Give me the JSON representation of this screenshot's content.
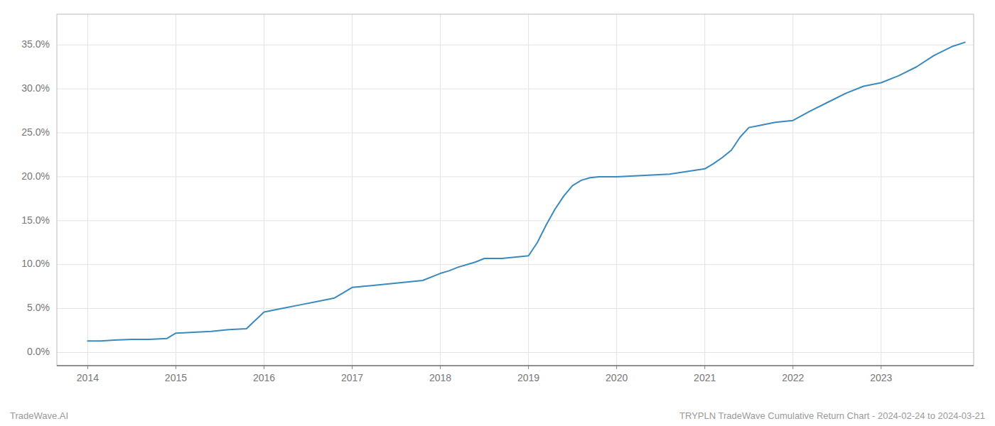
{
  "chart_data": {
    "type": "line",
    "x": [
      2014.0,
      2014.15,
      2014.3,
      2014.5,
      2014.7,
      2014.9,
      2015.0,
      2015.2,
      2015.4,
      2015.6,
      2015.8,
      2016.0,
      2016.2,
      2016.4,
      2016.6,
      2016.8,
      2017.0,
      2017.2,
      2017.4,
      2017.6,
      2017.8,
      2018.0,
      2018.1,
      2018.2,
      2018.3,
      2018.4,
      2018.5,
      2018.6,
      2018.7,
      2018.8,
      2018.9,
      2019.0,
      2019.1,
      2019.2,
      2019.3,
      2019.4,
      2019.5,
      2019.6,
      2019.7,
      2019.8,
      2019.9,
      2020.0,
      2020.2,
      2020.4,
      2020.6,
      2020.8,
      2021.0,
      2021.1,
      2021.2,
      2021.3,
      2021.4,
      2021.5,
      2021.6,
      2021.7,
      2021.8,
      2021.9,
      2022.0,
      2022.2,
      2022.4,
      2022.6,
      2022.8,
      2023.0,
      2023.2,
      2023.4,
      2023.6,
      2023.8,
      2023.95
    ],
    "values": [
      0.013,
      0.013,
      0.014,
      0.015,
      0.015,
      0.016,
      0.022,
      0.023,
      0.024,
      0.026,
      0.027,
      0.046,
      0.05,
      0.054,
      0.058,
      0.062,
      0.074,
      0.076,
      0.078,
      0.08,
      0.082,
      0.09,
      0.093,
      0.097,
      0.1,
      0.103,
      0.107,
      0.107,
      0.107,
      0.108,
      0.109,
      0.11,
      0.125,
      0.145,
      0.163,
      0.178,
      0.19,
      0.196,
      0.199,
      0.2,
      0.2,
      0.2,
      0.201,
      0.202,
      0.203,
      0.206,
      0.209,
      0.215,
      0.222,
      0.23,
      0.245,
      0.256,
      0.258,
      0.26,
      0.262,
      0.263,
      0.264,
      0.275,
      0.285,
      0.295,
      0.303,
      0.307,
      0.315,
      0.325,
      0.338,
      0.348,
      0.353
    ],
    "color": "#3a8abf",
    "xlim": [
      2013.65,
      2024.05
    ],
    "xticks": [
      2014,
      2015,
      2016,
      2017,
      2018,
      2019,
      2020,
      2021,
      2022,
      2023
    ],
    "ylim": [
      -0.015,
      0.385
    ],
    "yticks": [
      {
        "value": 0.0,
        "label": "0.0%"
      },
      {
        "value": 0.05,
        "label": "5.0%"
      },
      {
        "value": 0.1,
        "label": "10.0%"
      },
      {
        "value": 0.15,
        "label": "15.0%"
      },
      {
        "value": 0.2,
        "label": "20.0%"
      },
      {
        "value": 0.25,
        "label": "25.0%"
      },
      {
        "value": 0.3,
        "label": "30.0%"
      },
      {
        "value": 0.35,
        "label": "35.0%"
      }
    ],
    "grid": true,
    "annotations": [
      "TradeWave.AI",
      "TRYPLN TradeWave Cumulative Return Chart - 2024-02-24 to 2024-03-21"
    ]
  }
}
